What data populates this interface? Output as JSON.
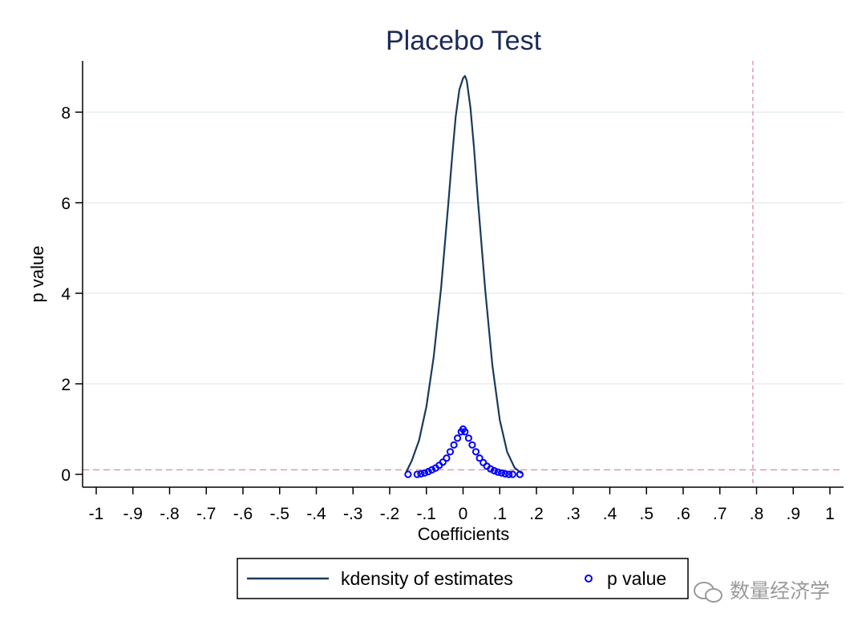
{
  "chart_data": {
    "type": "line",
    "title": "Placebo Test",
    "xlabel": "Coefficients",
    "ylabel": "p value",
    "xlim": [
      -1,
      1
    ],
    "ylim": [
      0,
      8.8
    ],
    "x_ticks": [
      "-1",
      "-.9",
      "-.8",
      "-.7",
      "-.6",
      "-.5",
      "-.4",
      "-.3",
      "-.2",
      "-.1",
      "0",
      ".1",
      ".2",
      ".3",
      ".4",
      ".5",
      ".6",
      ".7",
      ".8",
      ".9",
      "1"
    ],
    "x_tick_values": [
      -1,
      -0.9,
      -0.8,
      -0.7,
      -0.6,
      -0.5,
      -0.4,
      -0.3,
      -0.2,
      -0.1,
      0,
      0.1,
      0.2,
      0.3,
      0.4,
      0.5,
      0.6,
      0.7,
      0.8,
      0.9,
      1
    ],
    "y_ticks": [
      "0",
      "2",
      "4",
      "6",
      "8"
    ],
    "y_tick_values": [
      0,
      2,
      4,
      6,
      8
    ],
    "grid": true,
    "legend_position": "bottom",
    "series": [
      {
        "name": "kdensity of estimates",
        "kind": "line",
        "color": "#1a3a5c",
        "x": [
          -0.155,
          -0.14,
          -0.12,
          -0.1,
          -0.08,
          -0.06,
          -0.04,
          -0.03,
          -0.02,
          -0.01,
          0,
          0.005,
          0.01,
          0.02,
          0.03,
          0.04,
          0.06,
          0.08,
          0.1,
          0.12,
          0.14,
          0.16
        ],
        "y": [
          0.05,
          0.3,
          0.75,
          1.5,
          2.6,
          4.1,
          6.0,
          7.0,
          7.9,
          8.5,
          8.75,
          8.8,
          8.7,
          8.1,
          7.2,
          6.1,
          4.1,
          2.4,
          1.2,
          0.5,
          0.15,
          0.02
        ]
      },
      {
        "name": "p value",
        "kind": "scatter",
        "color": "#0000ff",
        "x": [
          -0.15,
          -0.125,
          -0.115,
          -0.105,
          -0.095,
          -0.085,
          -0.075,
          -0.065,
          -0.055,
          -0.045,
          -0.035,
          -0.025,
          -0.015,
          -0.005,
          0,
          0.005,
          0.015,
          0.025,
          0.035,
          0.045,
          0.055,
          0.065,
          0.075,
          0.085,
          0.095,
          0.105,
          0.115,
          0.125,
          0.135,
          0.155
        ],
        "y": [
          0.0,
          0.0,
          0.01,
          0.03,
          0.06,
          0.1,
          0.14,
          0.2,
          0.27,
          0.36,
          0.5,
          0.65,
          0.8,
          0.94,
          1.0,
          0.94,
          0.8,
          0.65,
          0.5,
          0.36,
          0.26,
          0.18,
          0.12,
          0.08,
          0.05,
          0.03,
          0.01,
          0.0,
          0.0,
          0.0
        ]
      }
    ],
    "reference_lines": [
      {
        "axis": "x",
        "value": 0.79,
        "color": "#d98a9a",
        "style": "dashed"
      },
      {
        "axis": "y",
        "value": 0.1,
        "color": "#d98a9a",
        "style": "dashed"
      }
    ]
  },
  "legend": {
    "items": [
      {
        "label": "kdensity of estimates",
        "color": "#1a3a5c",
        "kind": "line"
      },
      {
        "label": "p value",
        "color": "#0000ff",
        "kind": "marker"
      }
    ]
  },
  "watermark": {
    "text": "数量经济学",
    "icon": "wechat-icon"
  }
}
